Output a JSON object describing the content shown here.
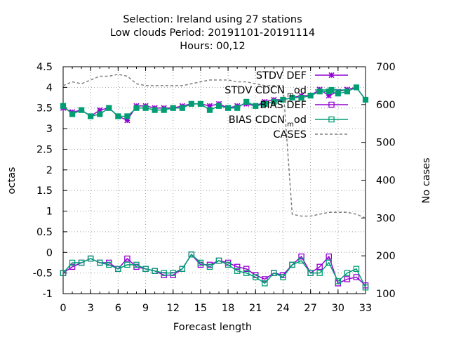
{
  "chart_data": {
    "type": "line",
    "title_lines": [
      "Selection: Ireland using    27 stations",
      "Low clouds   Period: 20191101-20191114",
      "Hours:  00,12"
    ],
    "xlabel": "Forecast length",
    "ylabel": "octas",
    "y2label": "No cases",
    "xlim": [
      0,
      33
    ],
    "ylim": [
      -1,
      4.5
    ],
    "y2lim": [
      100,
      700
    ],
    "x_ticks": [
      "0",
      "3",
      "6",
      "9",
      "12",
      "15",
      "18",
      "21",
      "24",
      "27",
      "30",
      "33"
    ],
    "y_ticks": [
      "-1",
      "-0.5",
      "0",
      "0.5",
      "1",
      "1.5",
      "2",
      "2.5",
      "3",
      "3.5",
      "4",
      "4.5"
    ],
    "y2_ticks": [
      "100",
      "200",
      "300",
      "400",
      "500",
      "600",
      "700"
    ],
    "grid": true,
    "legend_position": "top-right",
    "x": [
      0,
      1,
      2,
      3,
      4,
      5,
      6,
      7,
      8,
      9,
      10,
      11,
      12,
      13,
      14,
      15,
      16,
      17,
      18,
      19,
      20,
      21,
      22,
      23,
      24,
      25,
      26,
      27,
      28,
      29,
      30,
      31,
      32,
      33
    ],
    "series": [
      {
        "name": "STDV DEF",
        "color": "#9400d3",
        "marker": "star",
        "axis": "y",
        "values": [
          3.5,
          3.4,
          3.45,
          3.3,
          3.45,
          3.5,
          3.3,
          3.2,
          3.55,
          3.55,
          3.5,
          3.5,
          3.5,
          3.55,
          3.6,
          3.6,
          3.55,
          3.6,
          3.5,
          3.55,
          3.6,
          3.55,
          3.65,
          3.7,
          3.7,
          3.75,
          3.8,
          3.8,
          3.95,
          3.8,
          3.9,
          3.95,
          4.0,
          3.7
        ]
      },
      {
        "name": "STDV CDCN_mod",
        "label_main": "STDV CDCN",
        "label_sub": "m",
        "label_tail": "od",
        "color": "#009e73",
        "marker": "filled-square",
        "axis": "y",
        "values": [
          3.55,
          3.35,
          3.45,
          3.3,
          3.35,
          3.5,
          3.3,
          3.3,
          3.5,
          3.5,
          3.45,
          3.45,
          3.5,
          3.5,
          3.6,
          3.6,
          3.45,
          3.55,
          3.5,
          3.5,
          3.65,
          3.55,
          3.6,
          3.65,
          3.7,
          3.75,
          3.75,
          3.8,
          3.9,
          3.9,
          3.85,
          3.9,
          4.0,
          3.7
        ]
      },
      {
        "name": "BIAS DEF",
        "color": "#9400d3",
        "marker": "open-square",
        "axis": "y",
        "values": [
          -0.5,
          -0.35,
          -0.25,
          -0.15,
          -0.25,
          -0.25,
          -0.4,
          -0.15,
          -0.35,
          -0.4,
          -0.45,
          -0.55,
          -0.55,
          -0.4,
          -0.05,
          -0.3,
          -0.3,
          -0.2,
          -0.25,
          -0.35,
          -0.4,
          -0.55,
          -0.65,
          -0.5,
          -0.55,
          -0.3,
          -0.1,
          -0.5,
          -0.35,
          -0.1,
          -0.75,
          -0.65,
          -0.6,
          -0.8
        ]
      },
      {
        "name": "BIAS CDCN_mod",
        "label_main": "BIAS CDCN",
        "label_sub": "m",
        "label_tail": "od",
        "color": "#009e73",
        "marker": "open-square",
        "axis": "y",
        "values": [
          -0.5,
          -0.25,
          -0.25,
          -0.15,
          -0.25,
          -0.3,
          -0.4,
          -0.3,
          -0.3,
          -0.4,
          -0.45,
          -0.5,
          -0.5,
          -0.4,
          -0.05,
          -0.25,
          -0.35,
          -0.2,
          -0.3,
          -0.45,
          -0.5,
          -0.6,
          -0.75,
          -0.5,
          -0.6,
          -0.3,
          -0.2,
          -0.5,
          -0.5,
          -0.25,
          -0.7,
          -0.5,
          -0.4,
          -0.85
        ]
      },
      {
        "name": "CASES",
        "color": "#808080",
        "marker": "none",
        "dashed": true,
        "axis": "y2",
        "values": [
          650,
          660,
          655,
          665,
          675,
          675,
          680,
          675,
          655,
          650,
          650,
          650,
          650,
          650,
          655,
          660,
          665,
          665,
          665,
          660,
          660,
          655,
          650,
          650,
          650,
          310,
          305,
          305,
          310,
          315,
          315,
          315,
          310,
          300
        ]
      }
    ]
  }
}
